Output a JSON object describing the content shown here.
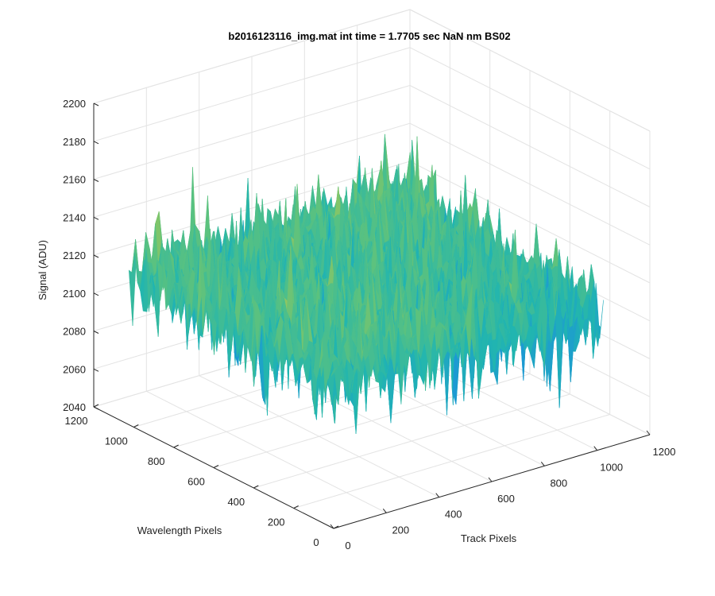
{
  "chart_data": {
    "type": "surface",
    "title": "b2016123116_img.mat int time = 1.7705 sec  NaN nm BS02",
    "xlabel": "Track Pixels",
    "ylabel": "Wavelength Pixels",
    "zlabel": "Signal (ADU)",
    "xlim": [
      0,
      1200
    ],
    "ylim": [
      0,
      1200
    ],
    "zlim": [
      2040,
      2200
    ],
    "x_ticks": [
      0,
      200,
      400,
      600,
      800,
      1000,
      1200
    ],
    "y_ticks": [
      0,
      200,
      400,
      600,
      800,
      1000,
      1200
    ],
    "z_ticks": [
      2040,
      2060,
      2080,
      2100,
      2120,
      2140,
      2160,
      2180,
      2200
    ],
    "data_extent": {
      "x": [
        0,
        1024
      ],
      "y": [
        0,
        1024
      ]
    },
    "signal_mean": 2118,
    "signal_range": [
      2075,
      2185
    ],
    "grid": true,
    "colormap": [
      "#0072bd",
      "#1c97d6",
      "#21b5b0",
      "#5cc27e",
      "#b7c94d",
      "#f0bb3a",
      "#f9d832"
    ]
  }
}
